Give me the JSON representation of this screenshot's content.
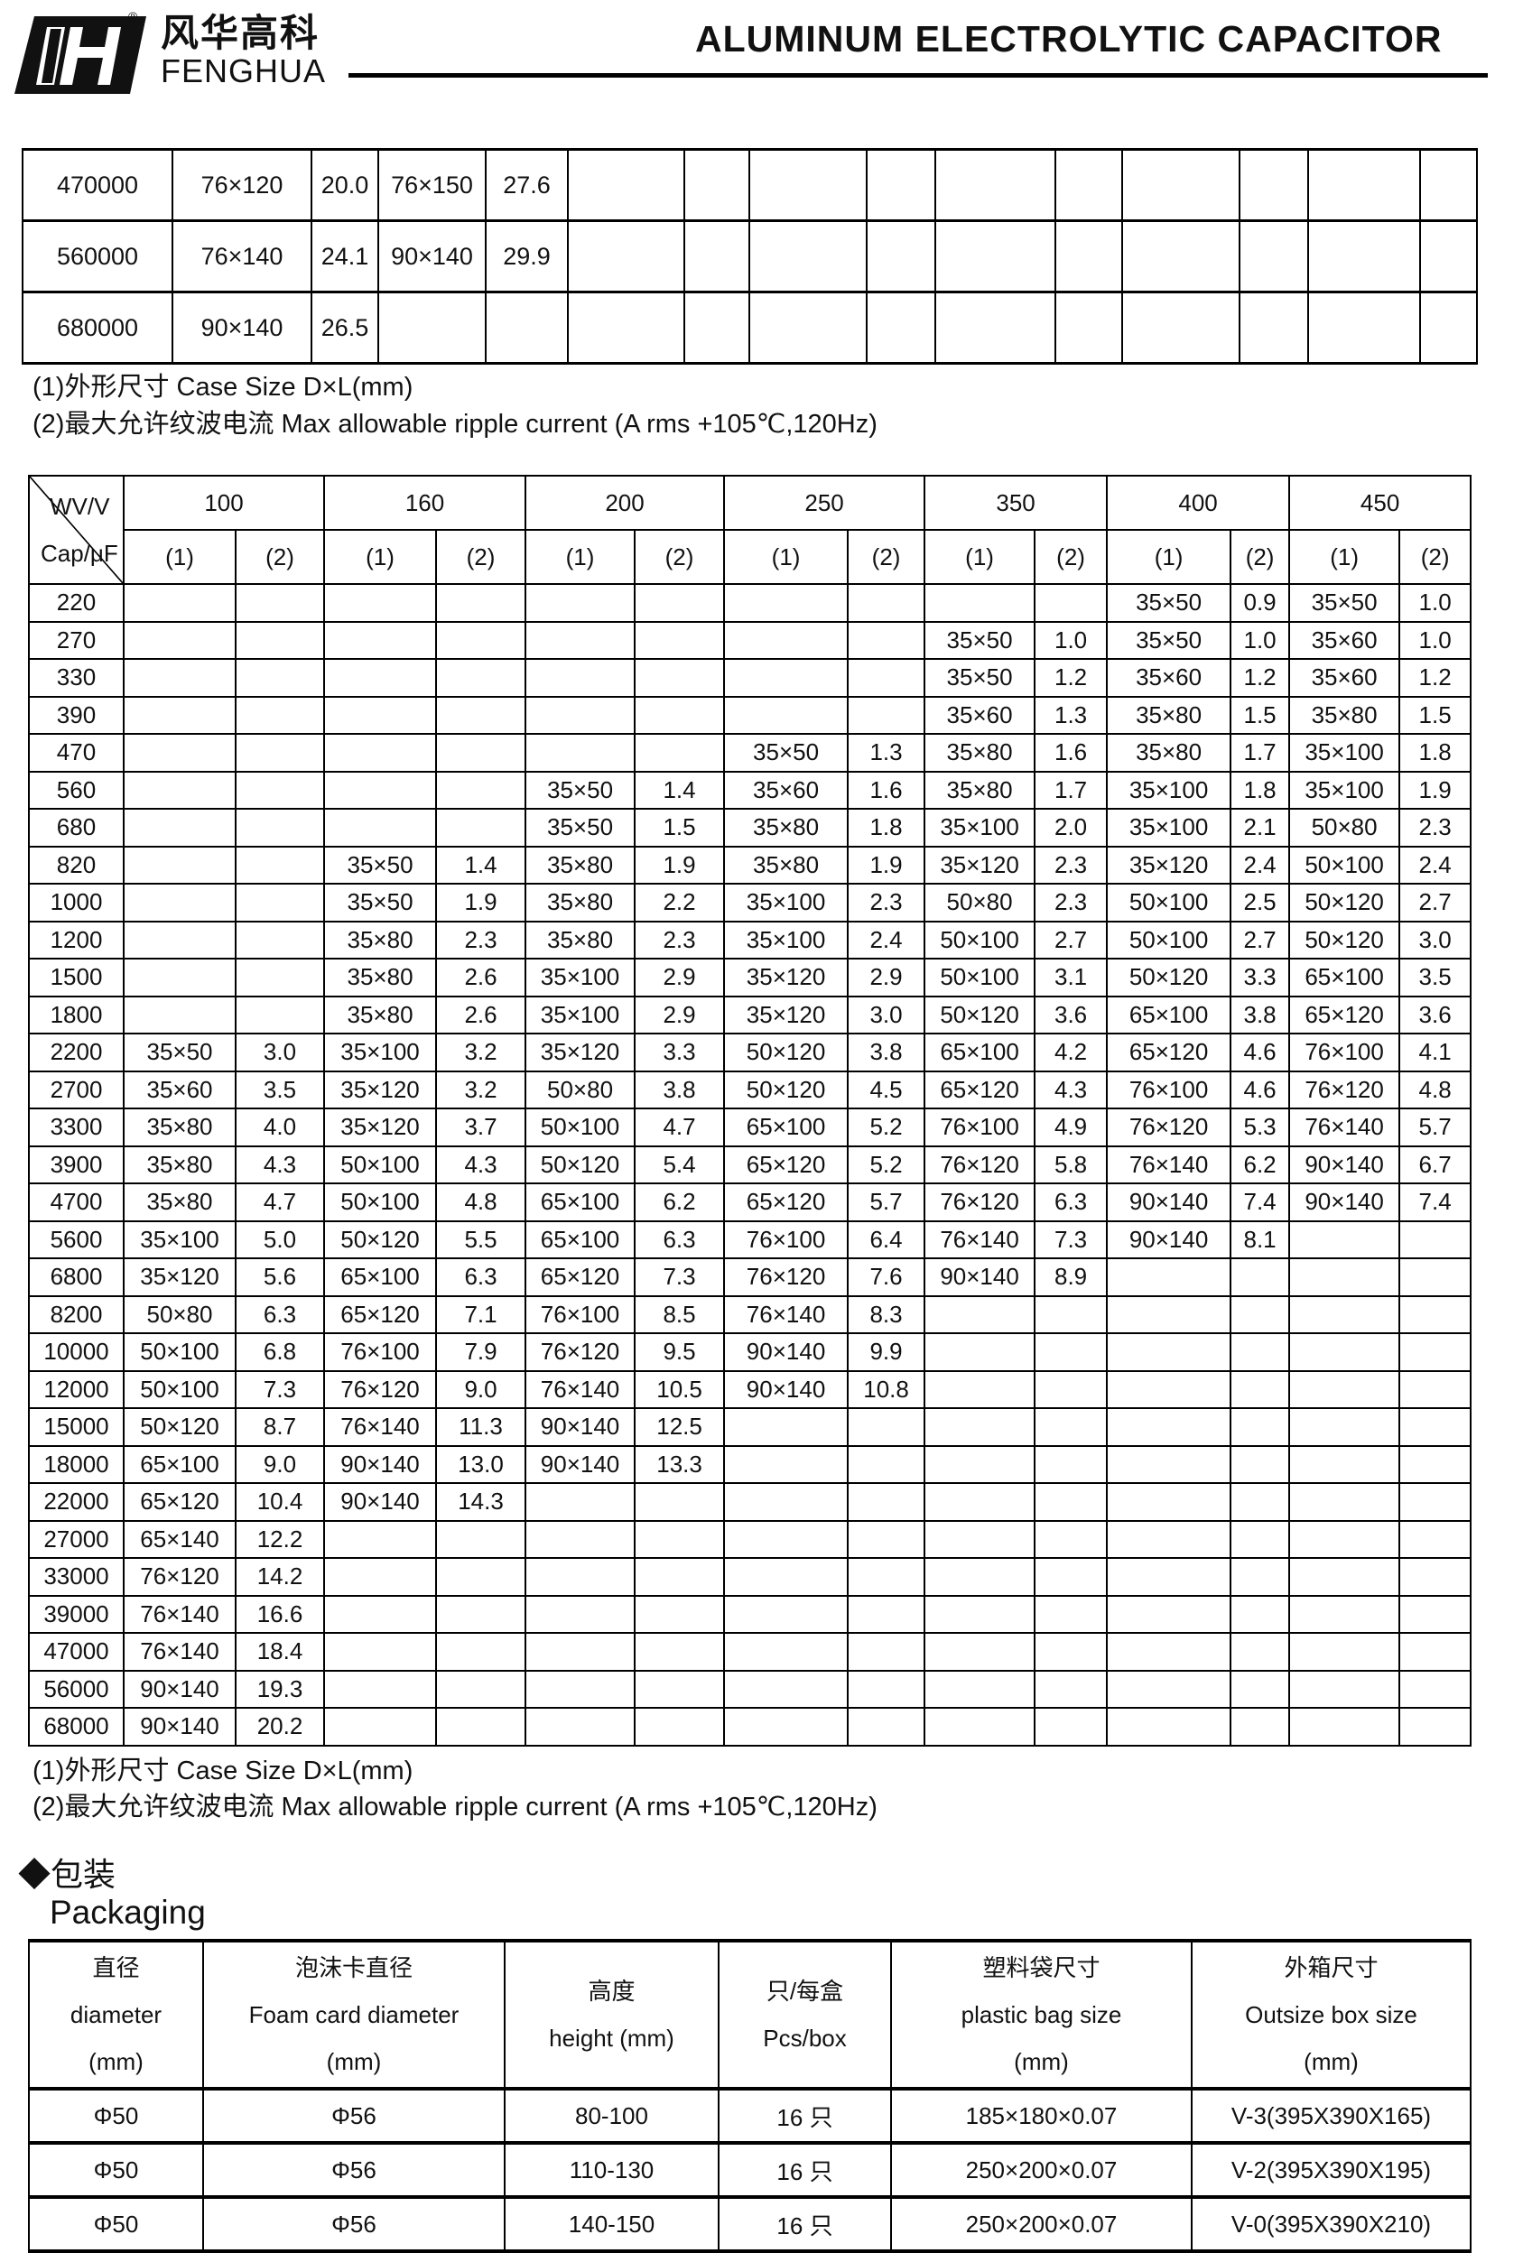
{
  "header": {
    "brand_cn": "风华高科",
    "brand_en": "FENGHUA",
    "registered_mark": "®",
    "title": "ALUMINUM ELECTROLYTIC CAPACITOR"
  },
  "continued_table": {
    "rows": [
      [
        "470000",
        "76×120",
        "20.0",
        "76×150",
        "27.6",
        "",
        "",
        "",
        "",
        "",
        "",
        "",
        "",
        "",
        ""
      ],
      [
        "560000",
        "76×140",
        "24.1",
        "90×140",
        "29.9",
        "",
        "",
        "",
        "",
        "",
        "",
        "",
        "",
        "",
        ""
      ],
      [
        "680000",
        "90×140",
        "26.5",
        "",
        "",
        "",
        "",
        "",
        "",
        "",
        "",
        "",
        "",
        "",
        ""
      ]
    ]
  },
  "notes_1": {
    "case_size": "(1)外形尺寸   Case Size D×L(mm)",
    "ripple": "(2)最大允许纹波电流  Max allowable ripple current    (A rms +105℃,120Hz)"
  },
  "main_table": {
    "corner_top": "WV/V",
    "corner_bottom": "Cap/μF",
    "voltages": [
      "100",
      "160",
      "200",
      "250",
      "350",
      "400",
      "450"
    ],
    "sub_headers": [
      "(1)",
      "(2)"
    ],
    "rows": [
      [
        "220",
        "",
        "",
        "",
        "",
        "",
        "",
        "",
        "",
        "",
        "",
        "35×50",
        "0.9",
        "35×50",
        "1.0"
      ],
      [
        "270",
        "",
        "",
        "",
        "",
        "",
        "",
        "",
        "",
        "35×50",
        "1.0",
        "35×50",
        "1.0",
        "35×60",
        "1.0"
      ],
      [
        "330",
        "",
        "",
        "",
        "",
        "",
        "",
        "",
        "",
        "35×50",
        "1.2",
        "35×60",
        "1.2",
        "35×60",
        "1.2"
      ],
      [
        "390",
        "",
        "",
        "",
        "",
        "",
        "",
        "",
        "",
        "35×60",
        "1.3",
        "35×80",
        "1.5",
        "35×80",
        "1.5"
      ],
      [
        "470",
        "",
        "",
        "",
        "",
        "",
        "",
        "35×50",
        "1.3",
        "35×80",
        "1.6",
        "35×80",
        "1.7",
        "35×100",
        "1.8"
      ],
      [
        "560",
        "",
        "",
        "",
        "",
        "35×50",
        "1.4",
        "35×60",
        "1.6",
        "35×80",
        "1.7",
        "35×100",
        "1.8",
        "35×100",
        "1.9"
      ],
      [
        "680",
        "",
        "",
        "",
        "",
        "35×50",
        "1.5",
        "35×80",
        "1.8",
        "35×100",
        "2.0",
        "35×100",
        "2.1",
        "50×80",
        "2.3"
      ],
      [
        "820",
        "",
        "",
        "35×50",
        "1.4",
        "35×80",
        "1.9",
        "35×80",
        "1.9",
        "35×120",
        "2.3",
        "35×120",
        "2.4",
        "50×100",
        "2.4"
      ],
      [
        "1000",
        "",
        "",
        "35×50",
        "1.9",
        "35×80",
        "2.2",
        "35×100",
        "2.3",
        "50×80",
        "2.3",
        "50×100",
        "2.5",
        "50×120",
        "2.7"
      ],
      [
        "1200",
        "",
        "",
        "35×80",
        "2.3",
        "35×80",
        "2.3",
        "35×100",
        "2.4",
        "50×100",
        "2.7",
        "50×100",
        "2.7",
        "50×120",
        "3.0"
      ],
      [
        "1500",
        "",
        "",
        "35×80",
        "2.6",
        "35×100",
        "2.9",
        "35×120",
        "2.9",
        "50×100",
        "3.1",
        "50×120",
        "3.3",
        "65×100",
        "3.5"
      ],
      [
        "1800",
        "",
        "",
        "35×80",
        "2.6",
        "35×100",
        "2.9",
        "35×120",
        "3.0",
        "50×120",
        "3.6",
        "65×100",
        "3.8",
        "65×120",
        "3.6"
      ],
      [
        "2200",
        "35×50",
        "3.0",
        "35×100",
        "3.2",
        "35×120",
        "3.3",
        "50×120",
        "3.8",
        "65×100",
        "4.2",
        "65×120",
        "4.6",
        "76×100",
        "4.1"
      ],
      [
        "2700",
        "35×60",
        "3.5",
        "35×120",
        "3.2",
        "50×80",
        "3.8",
        "50×120",
        "4.5",
        "65×120",
        "4.3",
        "76×100",
        "4.6",
        "76×120",
        "4.8"
      ],
      [
        "3300",
        "35×80",
        "4.0",
        "35×120",
        "3.7",
        "50×100",
        "4.7",
        "65×100",
        "5.2",
        "76×100",
        "4.9",
        "76×120",
        "5.3",
        "76×140",
        "5.7"
      ],
      [
        "3900",
        "35×80",
        "4.3",
        "50×100",
        "4.3",
        "50×120",
        "5.4",
        "65×120",
        "5.2",
        "76×120",
        "5.8",
        "76×140",
        "6.2",
        "90×140",
        "6.7"
      ],
      [
        "4700",
        "35×80",
        "4.7",
        "50×100",
        "4.8",
        "65×100",
        "6.2",
        "65×120",
        "5.7",
        "76×120",
        "6.3",
        "90×140",
        "7.4",
        "90×140",
        "7.4"
      ],
      [
        "5600",
        "35×100",
        "5.0",
        "50×120",
        "5.5",
        "65×100",
        "6.3",
        "76×100",
        "6.4",
        "76×140",
        "7.3",
        "90×140",
        "8.1",
        "",
        ""
      ],
      [
        "6800",
        "35×120",
        "5.6",
        "65×100",
        "6.3",
        "65×120",
        "7.3",
        "76×120",
        "7.6",
        "90×140",
        "8.9",
        "",
        "",
        "",
        ""
      ],
      [
        "8200",
        "50×80",
        "6.3",
        "65×120",
        "7.1",
        "76×100",
        "8.5",
        "76×140",
        "8.3",
        "",
        "",
        "",
        "",
        "",
        ""
      ],
      [
        "10000",
        "50×100",
        "6.8",
        "76×100",
        "7.9",
        "76×120",
        "9.5",
        "90×140",
        "9.9",
        "",
        "",
        "",
        "",
        "",
        ""
      ],
      [
        "12000",
        "50×100",
        "7.3",
        "76×120",
        "9.0",
        "76×140",
        "10.5",
        "90×140",
        "10.8",
        "",
        "",
        "",
        "",
        "",
        ""
      ],
      [
        "15000",
        "50×120",
        "8.7",
        "76×140",
        "11.3",
        "90×140",
        "12.5",
        "",
        "",
        "",
        "",
        "",
        "",
        "",
        ""
      ],
      [
        "18000",
        "65×100",
        "9.0",
        "90×140",
        "13.0",
        "90×140",
        "13.3",
        "",
        "",
        "",
        "",
        "",
        "",
        "",
        ""
      ],
      [
        "22000",
        "65×120",
        "10.4",
        "90×140",
        "14.3",
        "",
        "",
        "",
        "",
        "",
        "",
        "",
        "",
        "",
        ""
      ],
      [
        "27000",
        "65×140",
        "12.2",
        "",
        "",
        "",
        "",
        "",
        "",
        "",
        "",
        "",
        "",
        "",
        ""
      ],
      [
        "33000",
        "76×120",
        "14.2",
        "",
        "",
        "",
        "",
        "",
        "",
        "",
        "",
        "",
        "",
        "",
        ""
      ],
      [
        "39000",
        "76×140",
        "16.6",
        "",
        "",
        "",
        "",
        "",
        "",
        "",
        "",
        "",
        "",
        "",
        ""
      ],
      [
        "47000",
        "76×140",
        "18.4",
        "",
        "",
        "",
        "",
        "",
        "",
        "",
        "",
        "",
        "",
        "",
        ""
      ],
      [
        "56000",
        "90×140",
        "19.3",
        "",
        "",
        "",
        "",
        "",
        "",
        "",
        "",
        "",
        "",
        "",
        ""
      ],
      [
        "68000",
        "90×140",
        "20.2",
        "",
        "",
        "",
        "",
        "",
        "",
        "",
        "",
        "",
        "",
        "",
        ""
      ]
    ]
  },
  "notes_2": {
    "case_size": "(1)外形尺寸   Case Size D×L(mm)",
    "ripple": "(2)最大允许纹波电流  Max allowable ripple current    (A rms    +105℃,120Hz)"
  },
  "packaging": {
    "section_cn": "◆包装",
    "section_en": "Packaging",
    "headers": [
      [
        "直径",
        "diameter",
        "(mm)"
      ],
      [
        "泡沫卡直径",
        "Foam card diameter",
        "(mm)"
      ],
      [
        "高度",
        "height (mm)"
      ],
      [
        "只/每盒",
        "Pcs/box"
      ],
      [
        "塑料袋尺寸",
        "plastic bag size",
        "(mm)"
      ],
      [
        "外箱尺寸",
        "Outsize box size",
        "(mm)"
      ]
    ],
    "rows": [
      [
        "Φ50",
        "Φ56",
        "80-100",
        "16 只",
        "185×180×0.07",
        "V-3(395X390X165)"
      ],
      [
        "Φ50",
        "Φ56",
        "110-130",
        "16 只",
        "250×200×0.07",
        "V-2(395X390X195)"
      ],
      [
        "Φ50",
        "Φ56",
        "140-150",
        "16 只",
        "250×200×0.07",
        "V-0(395X390X210)"
      ]
    ]
  }
}
